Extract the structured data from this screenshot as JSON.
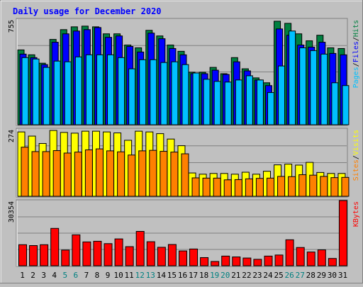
{
  "chart_data": {
    "type": "bar",
    "title": "Daily usage for December 2020",
    "categories": [
      "1",
      "2",
      "3",
      "4",
      "5",
      "6",
      "7",
      "8",
      "9",
      "10",
      "11",
      "12",
      "13",
      "14",
      "15",
      "16",
      "17",
      "18",
      "19",
      "20",
      "21",
      "22",
      "23",
      "24",
      "25",
      "26",
      "27",
      "28",
      "29",
      "30",
      "31"
    ],
    "weekend_days": [
      "5",
      "6",
      "12",
      "13",
      "19",
      "20",
      "26",
      "27"
    ],
    "panels": [
      {
        "id": "top",
        "ylim": [
          0,
          755
        ],
        "max_label": "755",
        "legend": [
          "Pages",
          "Files",
          "Hits"
        ],
        "series": [
          {
            "name": "Hits",
            "color": "#008040",
            "values": [
              535,
              500,
              440,
              610,
              680,
              700,
              705,
              700,
              650,
              650,
              570,
              550,
              675,
              635,
              570,
              525,
              375,
              375,
              410,
              365,
              480,
              400,
              335,
              300,
              740,
              725,
              650,
              600,
              640,
              550,
              545
            ]
          },
          {
            "name": "Files",
            "color": "#0000ff",
            "values": [
              505,
              480,
              430,
              590,
              650,
              670,
              680,
              695,
              625,
              635,
              560,
              520,
              655,
              615,
              545,
              500,
              365,
              365,
              390,
              360,
              450,
              385,
              320,
              280,
              685,
              640,
              570,
              555,
              590,
              510,
              500
            ]
          },
          {
            "name": "Pages",
            "color": "#00c0ff",
            "values": [
              480,
              470,
              410,
              455,
              450,
              485,
              500,
              500,
              500,
              480,
              400,
              465,
              465,
              445,
              450,
              430,
              370,
              325,
              310,
              305,
              320,
              350,
              320,
              230,
              420,
              670,
              550,
              530,
              505,
              300,
              280
            ]
          }
        ]
      },
      {
        "id": "middle",
        "ylim": [
          0,
          274
        ],
        "max_label": "274",
        "legend": [
          "Sites",
          "Visits"
        ],
        "series": [
          {
            "name": "Visits",
            "color": "#ffff00",
            "values": [
              262,
              245,
              215,
              268,
              260,
              257,
              265,
              265,
              262,
              258,
              228,
              265,
              262,
              255,
              233,
              206,
              95,
              90,
              93,
              93,
              90,
              98,
              90,
              102,
              128,
              131,
              127,
              138,
              97,
              93,
              93
            ]
          },
          {
            "name": "Sites",
            "color": "#ff8000",
            "values": [
              200,
              182,
              182,
              186,
              176,
              180,
              189,
              193,
              185,
              181,
              168,
              185,
              187,
              183,
              180,
              173,
              75,
              74,
              74,
              67,
              68,
              71,
              73,
              74,
              81,
              80,
              88,
              86,
              81,
              76,
              77
            ]
          }
        ]
      },
      {
        "id": "bottom",
        "ylim": [
          0,
          30354
        ],
        "max_label": "30354",
        "legend": [
          "KBytes"
        ],
        "series": [
          {
            "name": "KBytes",
            "color": "#ff0000",
            "values": [
              9800,
              9400,
              9800,
              17400,
              7300,
              14400,
              11100,
              11400,
              10300,
              12500,
              8900,
              16000,
              11200,
              8600,
              9900,
              6900,
              7800,
              3800,
              2000,
              4500,
              4100,
              3600,
              3000,
              4500,
              5000,
              12100,
              8500,
              6400,
              7400,
              3400,
              30354
            ]
          }
        ]
      }
    ]
  }
}
